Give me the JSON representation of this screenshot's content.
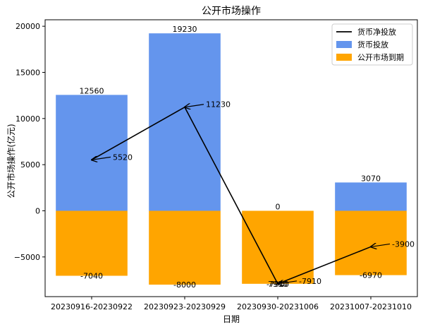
{
  "chart_data": {
    "type": "bar",
    "title": "公开市场操作",
    "xlabel": "日期",
    "ylabel": "公开市场操作(亿元)",
    "categories": [
      "20230916-20230922",
      "20230923-20230929",
      "20230930-20231006",
      "20231007-20231010"
    ],
    "series": [
      {
        "name": "货币投放",
        "type": "bar",
        "values": [
          12560,
          19230,
          0,
          3070
        ],
        "color": "#6495ED"
      },
      {
        "name": "公开市场到期",
        "type": "bar",
        "values": [
          -7040,
          -8000,
          -7910,
          -6970
        ],
        "color": "#FFA500"
      },
      {
        "name": "货币净投放",
        "type": "line",
        "values": [
          5520,
          11230,
          -7910,
          -3900
        ],
        "color": "#000000"
      }
    ],
    "bar_labels": {
      "positive": [
        "12560",
        "19230",
        "0",
        "3070"
      ],
      "negative": [
        "-7040",
        "-8000",
        "-7910",
        "-6970"
      ]
    },
    "line_annotations": [
      "5520",
      "11230",
      "-7910",
      "-3900"
    ],
    "overlap_label": "7910",
    "ylim": [
      -9300,
      20700
    ],
    "yticks": [
      -5000,
      0,
      5000,
      10000,
      15000,
      20000
    ],
    "ytick_labels": [
      "−5000",
      "0",
      "5000",
      "10000",
      "15000",
      "20000"
    ],
    "grid": false,
    "legend_position": "top-right",
    "legend_items": [
      {
        "label": "货币净投放",
        "kind": "line",
        "color": "#000000"
      },
      {
        "label": "货币投放",
        "kind": "patch",
        "color": "#6495ED"
      },
      {
        "label": "公开市场到期",
        "kind": "patch",
        "color": "#FFA500"
      }
    ]
  }
}
